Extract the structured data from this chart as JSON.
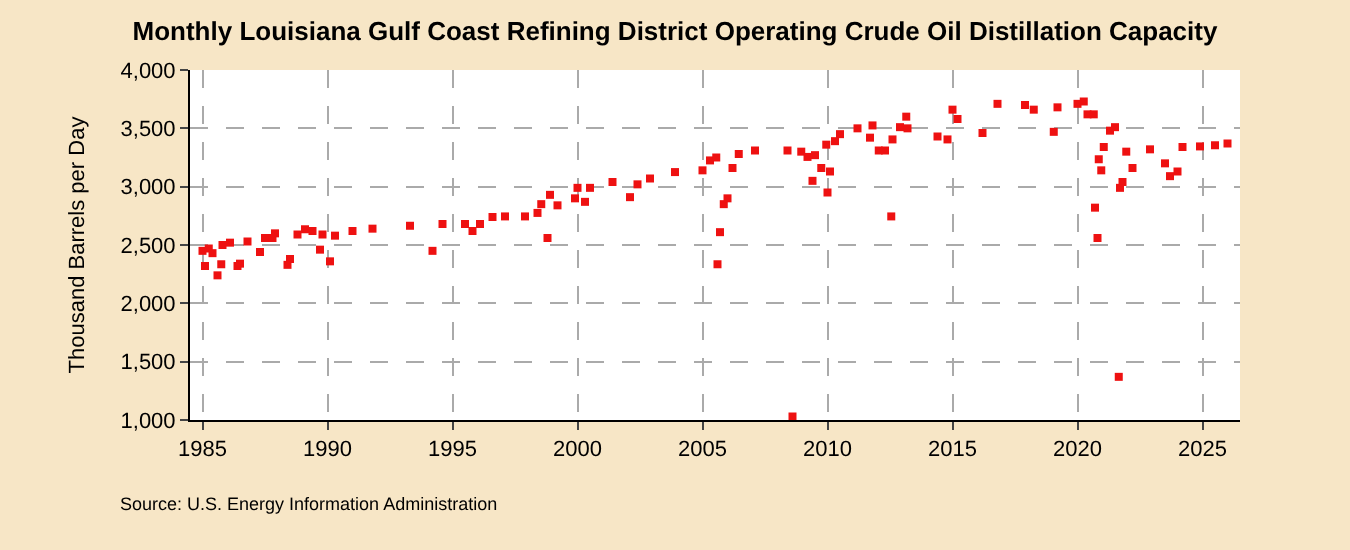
{
  "chart_data": {
    "type": "scatter",
    "title": "Monthly Louisiana Gulf Coast Refining District Operating Crude Oil Distillation Capacity",
    "ylabel": "Thousand Barrels per Day",
    "x": [
      1985,
      1985.1,
      1985.25,
      1985.4,
      1985.6,
      1985.75,
      1985.8,
      1986.1,
      1986.4,
      1986.5,
      1986.8,
      1987.3,
      1987.5,
      1987.8,
      1987.9,
      1988.4,
      1988.5,
      1988.8,
      1989.1,
      1989.4,
      1989.7,
      1989.8,
      1990.1,
      1990.3,
      1991,
      1991.8,
      1993.3,
      1994.2,
      1994.6,
      1995.5,
      1995.8,
      1996.1,
      1996.6,
      1997.1,
      1997.9,
      1998.4,
      1998.55,
      1998.8,
      1998.9,
      1999.2,
      1999.9,
      2000,
      2000.3,
      2000.5,
      2001.4,
      2002.1,
      2002.4,
      2002.9,
      2003.9,
      2005,
      2005.3,
      2005.55,
      2005.6,
      2005.7,
      2005.85,
      2006,
      2006.2,
      2006.45,
      2007.1,
      2008.4,
      2008.6,
      2008.95,
      2009.2,
      2009.4,
      2009.5,
      2009.75,
      2009.95,
      2010,
      2010.1,
      2010.3,
      2010.5,
      2011.2,
      2011.7,
      2011.8,
      2012.05,
      2012.3,
      2012.55,
      2012.6,
      2012.9,
      2013.15,
      2013.2,
      2014.4,
      2014.8,
      2015,
      2015.2,
      2016.2,
      2016.8,
      2017.9,
      2018.25,
      2019.05,
      2019.2,
      2020,
      2020.25,
      2020.4,
      2020.65,
      2020.7,
      2020.8,
      2020.85,
      2020.95,
      2021.05,
      2021.3,
      2021.5,
      2021.65,
      2021.7,
      2021.8,
      2021.95,
      2022.2,
      2022.9,
      2023.5,
      2023.7,
      2024,
      2024.2,
      2024.9,
      2025.5,
      2026
    ],
    "series": [
      {
        "color": "#ee1111",
        "values": [
          2450,
          2320,
          2470,
          2430,
          2240,
          2335,
          2500,
          2520,
          2320,
          2340,
          2530,
          2440,
          2560,
          2560,
          2600,
          2330,
          2380,
          2590,
          2635,
          2620,
          2460,
          2590,
          2360,
          2580,
          2620,
          2640,
          2665,
          2450,
          2680,
          2680,
          2620,
          2680,
          2740,
          2745,
          2745,
          2775,
          2850,
          2560,
          2930,
          2840,
          2900,
          2990,
          2870,
          2990,
          3040,
          2910,
          3020,
          3070,
          3125,
          3140,
          3225,
          3250,
          2335,
          2610,
          2850,
          2900,
          3160,
          3280,
          3310,
          3310,
          1030,
          3300,
          3255,
          3050,
          3270,
          3160,
          3360,
          2950,
          3130,
          3390,
          3450,
          3500,
          3420,
          3525,
          3310,
          3310,
          2745,
          3405,
          3510,
          3600,
          3500,
          3430,
          3405,
          3660,
          3580,
          3460,
          3710,
          3700,
          3660,
          3470,
          3680,
          3710,
          3730,
          3620,
          3620,
          2820,
          2560,
          3235,
          3140,
          3340,
          3480,
          3510,
          1370,
          2990,
          3040,
          3300,
          3160,
          3320,
          3200,
          3090,
          3130,
          3340,
          3345,
          3355,
          3370
        ]
      }
    ],
    "marker": "square",
    "xlim": [
      1984.5,
      2026.5
    ],
    "xticks": [
      1985,
      1990,
      1995,
      2000,
      2005,
      2010,
      2015,
      2020,
      2025
    ],
    "ylim": [
      1000,
      4000
    ],
    "yticks": [
      {
        "value": 1000,
        "label": "1,000"
      },
      {
        "value": 1500,
        "label": "1,500"
      },
      {
        "value": 2000,
        "label": "2,000"
      },
      {
        "value": 2500,
        "label": "2,500"
      },
      {
        "value": 3000,
        "label": "3,000"
      },
      {
        "value": 3500,
        "label": "3,500"
      },
      {
        "value": 4000,
        "label": "4,000"
      }
    ],
    "grid": true,
    "annotations": [
      "Source: U.S. Energy Information Administration"
    ]
  }
}
